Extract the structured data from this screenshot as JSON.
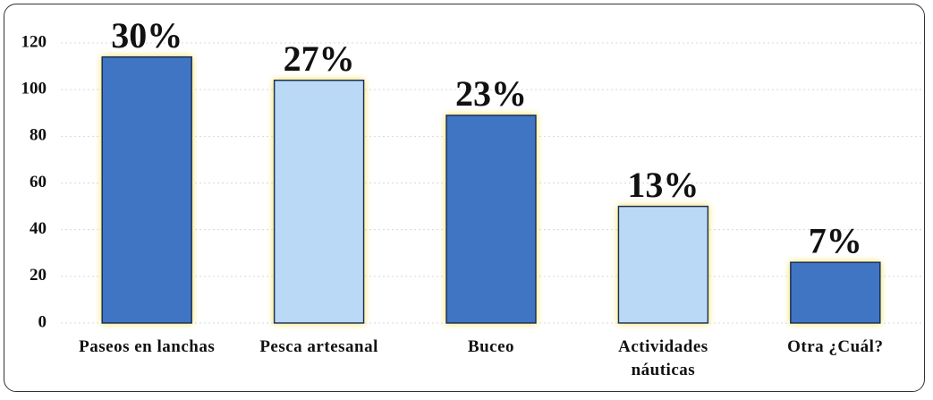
{
  "chart_data": {
    "type": "bar",
    "categories": [
      "Paseos en lanchas",
      "Pesca artesanal",
      "Buceo",
      "Actividades\nnáuticas",
      "Otra ¿Cuál?"
    ],
    "values": [
      114,
      104,
      89,
      50,
      26
    ],
    "annotations": [
      "30%",
      "27%",
      "23%",
      "13%",
      "7%"
    ],
    "colors": [
      "#3f74c4",
      "#b9d9f6",
      "#3f74c4",
      "#b9d9f6",
      "#3f74c4"
    ],
    "ylim": [
      0,
      120
    ],
    "yticks": [
      0,
      20,
      40,
      60,
      80,
      100,
      120
    ],
    "grid": true
  }
}
